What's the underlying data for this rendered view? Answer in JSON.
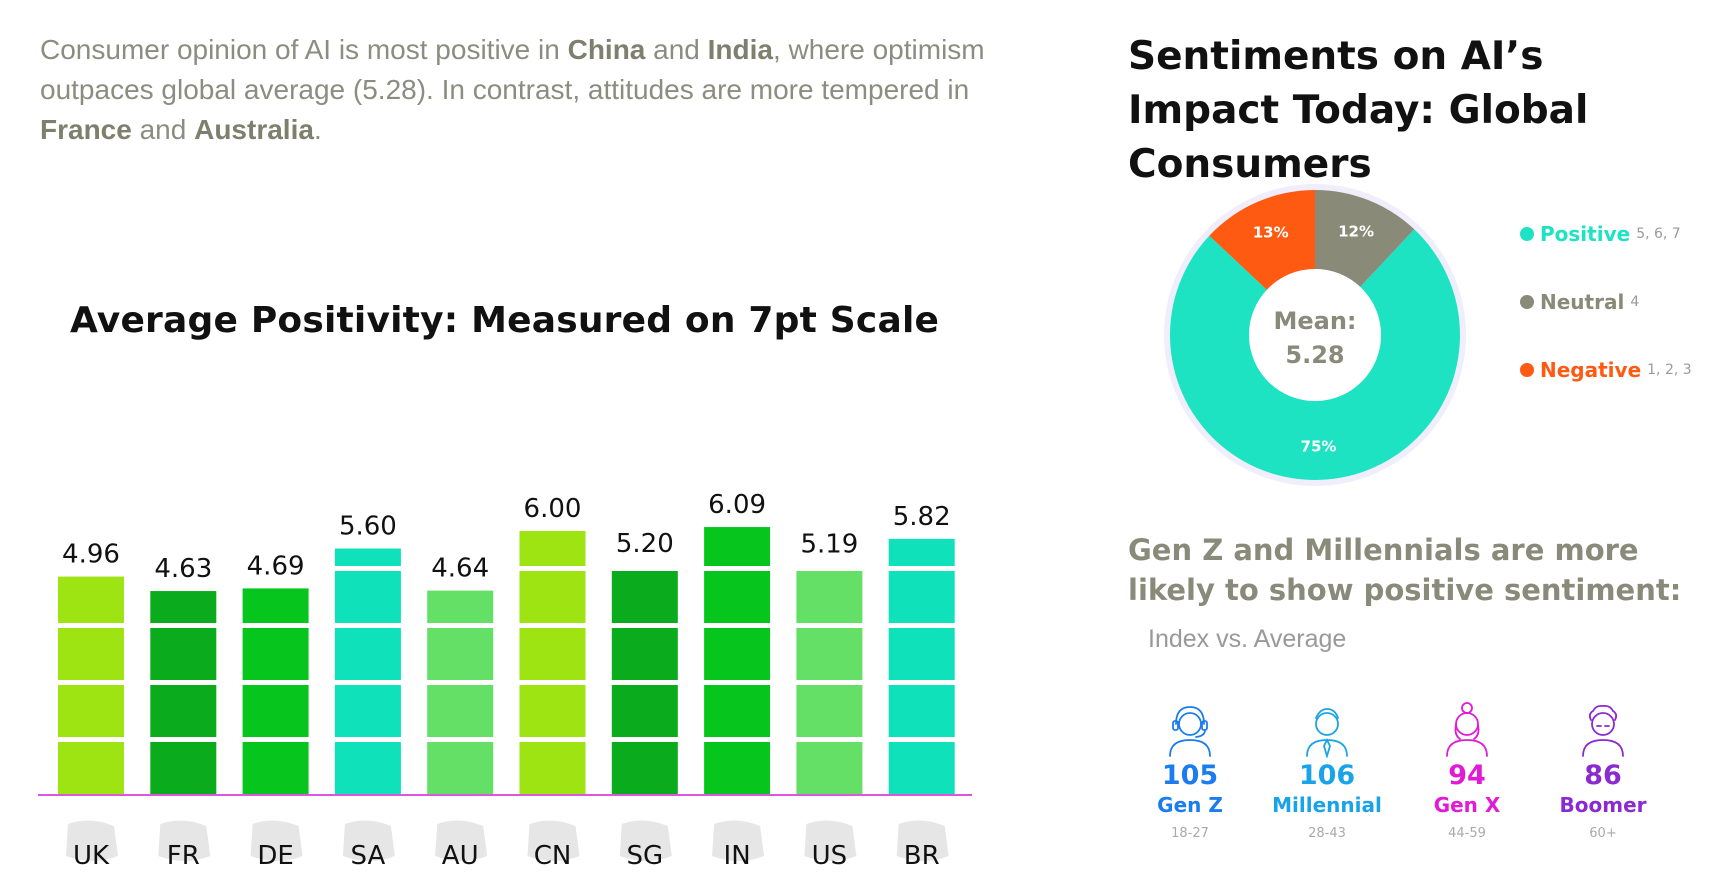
{
  "intro": {
    "parts": [
      {
        "text": "Consumer opinion of AI is most positive in ",
        "bold": false
      },
      {
        "text": "China",
        "bold": true
      },
      {
        "text": " and ",
        "bold": false
      },
      {
        "text": "India",
        "bold": true
      },
      {
        "text": ", where optimism outpaces global average (5.28). In contrast, attitudes are more tempered in ",
        "bold": false
      },
      {
        "text": "France",
        "bold": true
      },
      {
        "text": " and ",
        "bold": false
      },
      {
        "text": "Australia",
        "bold": true
      },
      {
        "text": ".",
        "bold": false
      }
    ]
  },
  "chart_data": [
    {
      "type": "bar",
      "title": "Average Positivity: Measured on 7pt Scale",
      "categories": [
        "UK",
        "FR",
        "DE",
        "SA",
        "AU",
        "CN",
        "SG",
        "IN",
        "US",
        "BR"
      ],
      "values": [
        4.96,
        4.63,
        4.69,
        5.6,
        4.64,
        6.0,
        5.2,
        6.09,
        5.19,
        5.82
      ],
      "value_labels": [
        "4.96",
        "4.63",
        "4.69",
        "5.60",
        "4.64",
        "6.00",
        "5.20",
        "6.09",
        "5.19",
        "5.82"
      ],
      "colors": [
        "#9ee312",
        "#0aab1d",
        "#06c61e",
        "#0fe2bb",
        "#63e065",
        "#9ee312",
        "#0aab1d",
        "#06c61e",
        "#63e065",
        "#0fe2bb"
      ],
      "xlabel": "",
      "ylabel": "",
      "grid": false,
      "axis_color": "#e055e0"
    },
    {
      "type": "pie",
      "title": "Sentiments on AI’s Impact Today: Global Consumers",
      "center_label": [
        "Mean:",
        "5.28"
      ],
      "slices": [
        {
          "name": "Positive",
          "value": 75,
          "label": "75%",
          "range": "5, 6, 7",
          "color": "#1ee3c3"
        },
        {
          "name": "Negative",
          "value": 13,
          "label": "13%",
          "range": "1, 2, 3",
          "color": "#ff5a12"
        },
        {
          "name": "Neutral",
          "value": 12,
          "label": "12%",
          "range": "4",
          "color": "#8a8a79"
        }
      ],
      "legend_order": [
        "Positive",
        "Neutral",
        "Negative"
      ],
      "legend": "right"
    }
  ],
  "generations": {
    "heading": "Gen Z and Millennials are more likely to show positive sentiment:",
    "subheading": "Index vs. Average",
    "items": [
      {
        "index": "105",
        "name": "Gen Z",
        "age": "18-27",
        "color": "#1b7cf0",
        "icon": "headset-person-icon"
      },
      {
        "index": "106",
        "name": "Millennial",
        "age": "28-43",
        "color": "#1aa3e8",
        "icon": "person-tie-icon"
      },
      {
        "index": "94",
        "name": "Gen X",
        "age": "44-59",
        "color": "#e11ad6",
        "icon": "woman-bun-icon"
      },
      {
        "index": "86",
        "name": "Boomer",
        "age": "60+",
        "color": "#8a2ad1",
        "icon": "elder-person-icon"
      }
    ]
  }
}
